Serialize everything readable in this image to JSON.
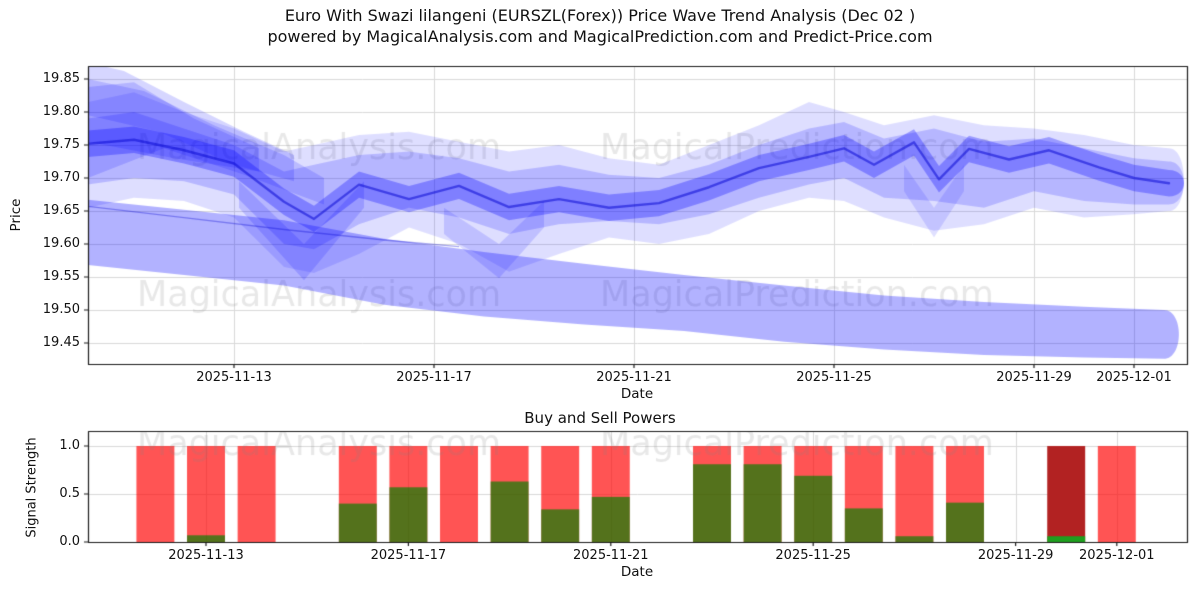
{
  "figure": {
    "title_line1": "Euro With Swazi lilangeni (EURSZL(Forex)) Price Wave Trend Analysis (Dec 02 )",
    "title_line2": "powered by MagicalAnalysis.com and MagicalPrediction.com and Predict-Price.com",
    "watermark_left": "MagicalAnalysis.com",
    "watermark_right": "MagicalPrediction.com"
  },
  "colors": {
    "band_blue": "#0000ff",
    "main_line_blue": "#0a0ad2",
    "sell_red": "#ff0000",
    "buy_green": "#008000",
    "bar_alpha": 0.67,
    "highlight_sell": "#b22222",
    "highlight_buy": "#1f9e1f",
    "grid": "#d9d9d9",
    "frame": "#1a1a1a",
    "watermark": "#8a8a8a"
  },
  "chart_data": [
    {
      "type": "area",
      "name": "price_wave_trend",
      "ylabel": "Price",
      "xlabel": "Date",
      "y_ticks": [
        "19.85",
        "19.80",
        "19.75",
        "19.70",
        "19.65",
        "19.60",
        "19.55",
        "19.50",
        "19.45"
      ],
      "y_tick_values": [
        19.85,
        19.8,
        19.75,
        19.7,
        19.65,
        19.6,
        19.55,
        19.5,
        19.45
      ],
      "x_ticks": [
        "2025-11-13",
        "2025-11-17",
        "2025-11-21",
        "2025-11-25",
        "2025-11-29",
        "2025-12-01"
      ],
      "x_tick_days": [
        3,
        7,
        11,
        15,
        19,
        21
      ],
      "x_unit": "days_since_2025-11-10",
      "ylim": [
        19.418,
        19.87
      ],
      "xlim_days": [
        0.08,
        22.06
      ],
      "grid": true,
      "main_line": [
        [
          0.08,
          19.752
        ],
        [
          1,
          19.758
        ],
        [
          2,
          19.742
        ],
        [
          3,
          19.722
        ],
        [
          4,
          19.664
        ],
        [
          4.6,
          19.638
        ],
        [
          5.5,
          19.69
        ],
        [
          6.5,
          19.668
        ],
        [
          7.5,
          19.688
        ],
        [
          8.5,
          19.656
        ],
        [
          9.5,
          19.668
        ],
        [
          10.5,
          19.655
        ],
        [
          11.5,
          19.662
        ],
        [
          12.5,
          19.686
        ],
        [
          13.5,
          19.715
        ],
        [
          14.5,
          19.732
        ],
        [
          15.2,
          19.745
        ],
        [
          15.8,
          19.72
        ],
        [
          16.6,
          19.754
        ],
        [
          17.1,
          19.698
        ],
        [
          17.7,
          19.744
        ],
        [
          18.5,
          19.728
        ],
        [
          19.3,
          19.742
        ],
        [
          20.3,
          19.716
        ],
        [
          21,
          19.7
        ],
        [
          21.7,
          19.692
        ]
      ],
      "core_band_halfwidth": 0.02,
      "bands": [
        {
          "name": "outer-envelope",
          "alpha": 0.13,
          "cap": true,
          "pts": [
            [
              0.08,
              19.815,
              19.655
            ],
            [
              1,
              19.83,
              19.67
            ],
            [
              2,
              19.8,
              19.665
            ],
            [
              3,
              19.775,
              19.64
            ],
            [
              4,
              19.74,
              19.565
            ],
            [
              4.6,
              19.75,
              19.556
            ],
            [
              5.5,
              19.765,
              19.585
            ],
            [
              6.5,
              19.77,
              19.625
            ],
            [
              7.5,
              19.755,
              19.6
            ],
            [
              8.5,
              19.74,
              19.558
            ],
            [
              9.5,
              19.75,
              19.585
            ],
            [
              10.5,
              19.73,
              19.61
            ],
            [
              11.5,
              19.72,
              19.6
            ],
            [
              12.5,
              19.75,
              19.615
            ],
            [
              13.5,
              19.78,
              19.65
            ],
            [
              14.5,
              19.815,
              19.67
            ],
            [
              15.2,
              19.8,
              19.665
            ],
            [
              16,
              19.78,
              19.64
            ],
            [
              17,
              19.795,
              19.62
            ],
            [
              18,
              19.78,
              19.63
            ],
            [
              19,
              19.775,
              19.655
            ],
            [
              20,
              19.765,
              19.64
            ],
            [
              21,
              19.75,
              19.645
            ],
            [
              21.7,
              19.745,
              19.65
            ]
          ]
        },
        {
          "name": "mid-envelope",
          "alpha": 0.18,
          "cap": true,
          "pts": [
            [
              0.08,
              19.79,
              19.69
            ],
            [
              1,
              19.8,
              19.7
            ],
            [
              2,
              19.775,
              19.695
            ],
            [
              3,
              19.75,
              19.675
            ],
            [
              4,
              19.71,
              19.6
            ],
            [
              4.6,
              19.72,
              19.592
            ],
            [
              5.5,
              19.735,
              19.63
            ],
            [
              6.5,
              19.74,
              19.655
            ],
            [
              7.5,
              19.73,
              19.64
            ],
            [
              8.5,
              19.71,
              19.615
            ],
            [
              9.5,
              19.72,
              19.63
            ],
            [
              10.5,
              19.705,
              19.635
            ],
            [
              11.5,
              19.7,
              19.63
            ],
            [
              12.5,
              19.72,
              19.645
            ],
            [
              13.5,
              19.75,
              19.67
            ],
            [
              14.5,
              19.775,
              19.69
            ],
            [
              15.2,
              19.785,
              19.7
            ],
            [
              16,
              19.76,
              19.67
            ],
            [
              17,
              19.775,
              19.665
            ],
            [
              18,
              19.755,
              19.655
            ],
            [
              19,
              19.76,
              19.68
            ],
            [
              20,
              19.745,
              19.665
            ],
            [
              21,
              19.73,
              19.66
            ],
            [
              21.7,
              19.725,
              19.66
            ]
          ]
        },
        {
          "name": "support-band",
          "alpha": 0.3,
          "cap": true,
          "pts": [
            [
              0.08,
              19.667,
              19.568
            ],
            [
              2,
              19.652,
              19.553
            ],
            [
              4,
              19.636,
              19.537
            ],
            [
              6,
              19.608,
              19.508
            ],
            [
              8,
              19.588,
              19.49
            ],
            [
              10,
              19.57,
              19.478
            ],
            [
              12,
              19.553,
              19.468
            ],
            [
              14,
              19.537,
              19.452
            ],
            [
              16,
              19.522,
              19.44
            ],
            [
              18,
              19.512,
              19.432
            ],
            [
              20,
              19.505,
              19.428
            ],
            [
              21.6,
              19.5,
              19.426
            ]
          ]
        },
        {
          "name": "dip-wave-nov14",
          "alpha": 0.16,
          "cap": false,
          "pts": [
            [
              3.1,
              19.695,
              19.655
            ],
            [
              4.4,
              19.6,
              19.545
            ],
            [
              5.6,
              19.695,
              19.655
            ]
          ]
        },
        {
          "name": "dip-wave-nov18",
          "alpha": 0.14,
          "cap": false,
          "pts": [
            [
              7.2,
              19.655,
              19.615
            ],
            [
              8.3,
              19.6,
              19.548
            ],
            [
              9.2,
              19.665,
              19.625
            ]
          ]
        },
        {
          "name": "dip-wave-nov27",
          "alpha": 0.12,
          "cap": false,
          "pts": [
            [
              16.4,
              19.72,
              19.68
            ],
            [
              17.0,
              19.655,
              19.61
            ],
            [
              17.6,
              19.72,
              19.68
            ]
          ]
        }
      ],
      "fans": [
        {
          "name": "upper-fan-1",
          "alpha": 0.16,
          "poly": [
            [
              0.08,
              19.875
            ],
            [
              0.8,
              19.862
            ],
            [
              2,
              19.815
            ],
            [
              3.2,
              19.77
            ],
            [
              4.2,
              19.735
            ],
            [
              4.2,
              19.695
            ],
            [
              3,
              19.72
            ],
            [
              1.5,
              19.77
            ],
            [
              0.08,
              19.795
            ]
          ]
        },
        {
          "name": "upper-fan-2",
          "alpha": 0.16,
          "poly": [
            [
              0.08,
              19.85
            ],
            [
              1.2,
              19.832
            ],
            [
              2.6,
              19.78
            ],
            [
              4,
              19.735
            ],
            [
              4.8,
              19.7
            ],
            [
              4.8,
              19.66
            ],
            [
              3.2,
              19.705
            ],
            [
              1.6,
              19.745
            ],
            [
              0.08,
              19.7
            ]
          ]
        },
        {
          "name": "upper-fan-3",
          "alpha": 0.16,
          "poly": [
            [
              0.08,
              19.838
            ],
            [
              1.0,
              19.845
            ],
            [
              2.2,
              19.79
            ],
            [
              3.5,
              19.745
            ],
            [
              3.5,
              19.71
            ],
            [
              1.8,
              19.73
            ],
            [
              0.08,
              19.755
            ]
          ]
        }
      ],
      "support_line": [
        [
          0.08,
          19.657
        ],
        [
          2,
          19.64
        ],
        [
          4,
          19.622
        ],
        [
          6,
          19.606
        ],
        [
          7.5,
          19.596
        ]
      ]
    },
    {
      "type": "bar",
      "name": "buy_sell_powers",
      "title": "Buy and Sell Powers",
      "ylabel": "Signal Strength",
      "xlabel": "Date",
      "y_ticks": [
        "1.0",
        "0.5",
        "0.0"
      ],
      "y_tick_values": [
        1.0,
        0.5,
        0.0
      ],
      "x_ticks": [
        "2025-11-13",
        "2025-11-17",
        "2025-11-21",
        "2025-11-25",
        "2025-11-29",
        "2025-12-01"
      ],
      "x_tick_days": [
        3,
        7,
        11,
        15,
        19,
        21
      ],
      "x_unit": "days_since_2025-11-10",
      "ylim": [
        0,
        1.16
      ],
      "grid": true,
      "bar_width_days": 0.75,
      "bars": [
        {
          "date": "2025-11-12",
          "buy_power": 0.0,
          "sell_power": 1.0,
          "highlight": false
        },
        {
          "date": "2025-11-13",
          "buy_power": 0.07,
          "sell_power": 1.0,
          "highlight": false
        },
        {
          "date": "2025-11-14",
          "buy_power": 0.0,
          "sell_power": 1.0,
          "highlight": false
        },
        {
          "date": "2025-11-16",
          "buy_power": 0.4,
          "sell_power": 1.0,
          "highlight": false
        },
        {
          "date": "2025-11-17",
          "buy_power": 0.57,
          "sell_power": 1.0,
          "highlight": false
        },
        {
          "date": "2025-11-18",
          "buy_power": 0.0,
          "sell_power": 1.0,
          "highlight": false
        },
        {
          "date": "2025-11-19",
          "buy_power": 0.63,
          "sell_power": 1.0,
          "highlight": false
        },
        {
          "date": "2025-11-20",
          "buy_power": 0.34,
          "sell_power": 1.0,
          "highlight": false
        },
        {
          "date": "2025-11-21",
          "buy_power": 0.47,
          "sell_power": 1.0,
          "highlight": false
        },
        {
          "date": "2025-11-23",
          "buy_power": 0.81,
          "sell_power": 1.0,
          "highlight": false
        },
        {
          "date": "2025-11-24",
          "buy_power": 0.81,
          "sell_power": 1.0,
          "highlight": false
        },
        {
          "date": "2025-11-25",
          "buy_power": 0.69,
          "sell_power": 1.0,
          "highlight": false
        },
        {
          "date": "2025-11-26",
          "buy_power": 0.35,
          "sell_power": 1.0,
          "highlight": false
        },
        {
          "date": "2025-11-27",
          "buy_power": 0.06,
          "sell_power": 1.0,
          "highlight": false
        },
        {
          "date": "2025-11-28",
          "buy_power": 0.41,
          "sell_power": 1.0,
          "highlight": false
        },
        {
          "date": "2025-11-30",
          "buy_power": 0.06,
          "sell_power": 1.0,
          "highlight": true
        },
        {
          "date": "2025-12-01",
          "buy_power": 0.0,
          "sell_power": 1.0,
          "highlight": false
        }
      ]
    }
  ]
}
